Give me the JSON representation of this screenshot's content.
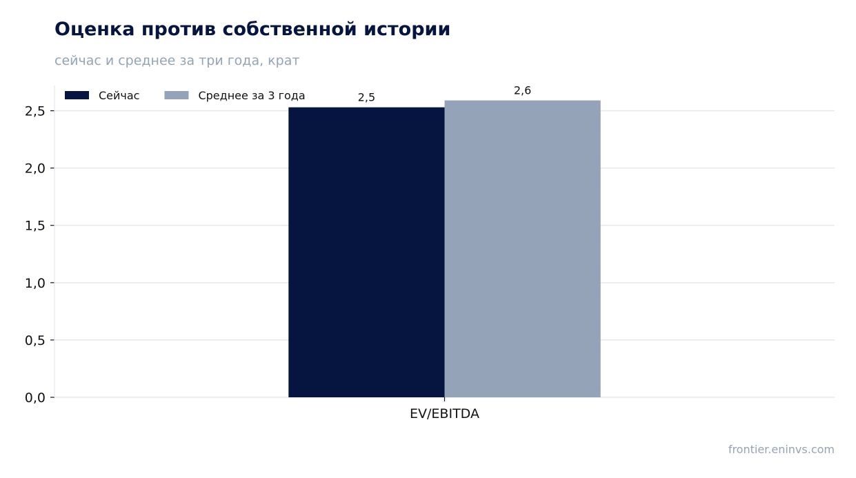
{
  "header": {
    "title": "Оценка против собственной истории",
    "subtitle": "сейчас и среднее за три года, крат"
  },
  "source": "frontier.eninvs.com",
  "chart_data": {
    "type": "bar",
    "title": "Оценка против собственной истории",
    "subtitle": "сейчас и среднее за три года, крат",
    "categories": [
      "EV/EBITDA"
    ],
    "series": [
      {
        "name": "Сейчас",
        "values": [
          2.53
        ],
        "label": "2,5",
        "color": "#06153f"
      },
      {
        "name": "Среднее за 3 года",
        "values": [
          2.59
        ],
        "label": "2,6",
        "color": "#94a3b8"
      }
    ],
    "ylim": [
      0,
      2.72
    ],
    "yticks": [
      0,
      0.5,
      1.0,
      1.5,
      2.0,
      2.5
    ],
    "ytick_labels": [
      "0,0",
      "0,5",
      "1,0",
      "1,5",
      "2,0",
      "2,5"
    ],
    "grid": true,
    "legend": "top-left"
  }
}
